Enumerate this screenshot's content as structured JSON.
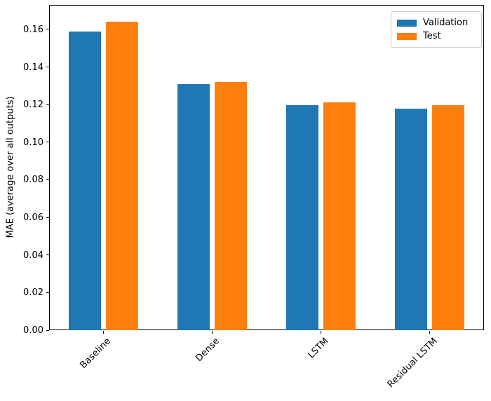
{
  "chart_data": {
    "type": "bar",
    "title": "",
    "xlabel": "",
    "ylabel": "MAE (average over all outputs)",
    "categories": [
      "Baseline",
      "Dense",
      "LSTM",
      "Residual LSTM"
    ],
    "series": [
      {
        "name": "Validation",
        "color": "#1f77b4",
        "values": [
          0.159,
          0.131,
          0.1195,
          0.118
        ]
      },
      {
        "name": "Test",
        "color": "#ff7f0e",
        "values": [
          0.164,
          0.132,
          0.121,
          0.1195
        ]
      }
    ],
    "ylim": [
      0,
      0.173
    ],
    "ytick_values": [
      0.0,
      0.02,
      0.04,
      0.06,
      0.08,
      0.1,
      0.12,
      0.14,
      0.16
    ],
    "ytick_labels": [
      "0.00",
      "0.02",
      "0.04",
      "0.06",
      "0.08",
      "0.10",
      "0.12",
      "0.14",
      "0.16"
    ],
    "xtick_rotation_deg": 45,
    "grid": false,
    "legend": {
      "position": "upper right",
      "entries": [
        "Validation",
        "Test"
      ]
    },
    "bar_width_frac": 0.3,
    "bar_offset_frac": 0.17
  }
}
